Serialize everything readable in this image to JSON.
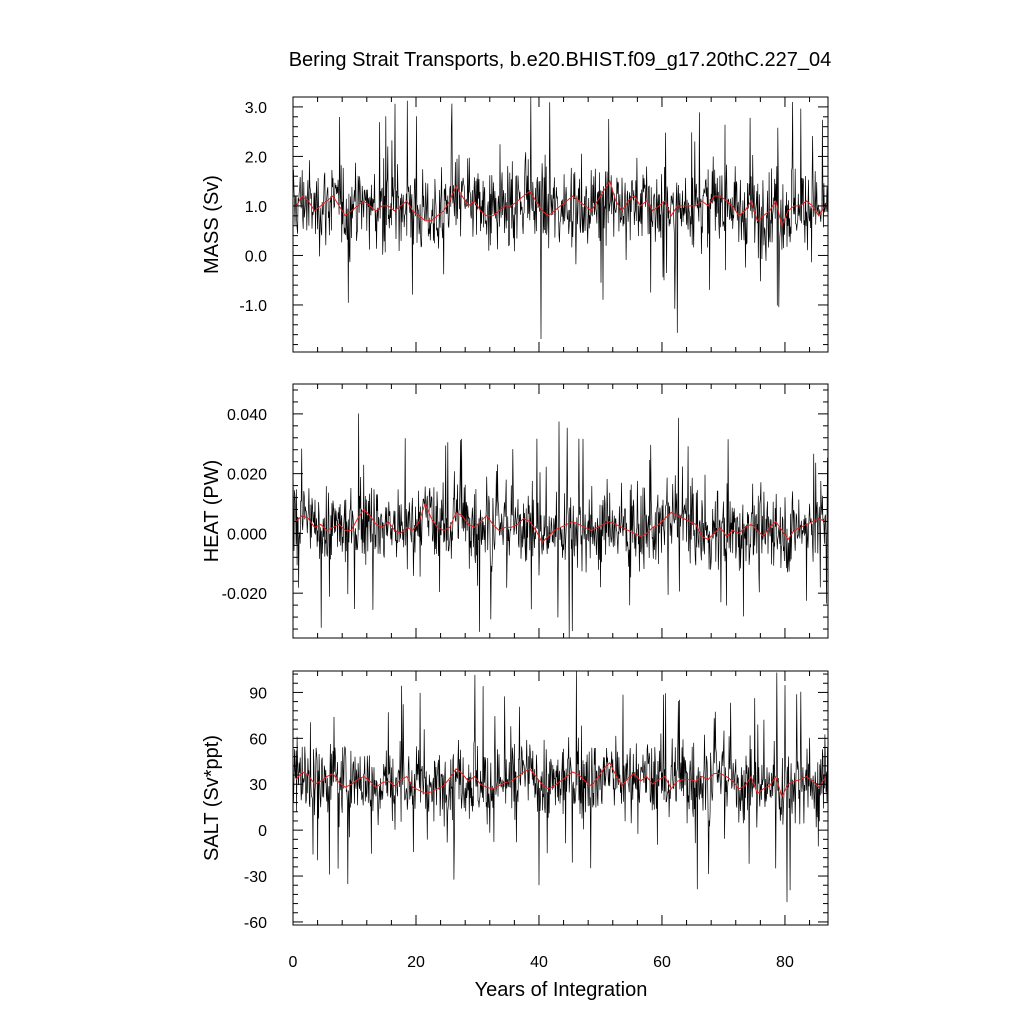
{
  "title": "Bering Strait Transports, b.e20.BHIST.f09_g17.20thC.227_04",
  "chart_data": {
    "type": "line",
    "title": "Bering Strait Transports, b.e20.BHIST.f09_g17.20thC.227_04",
    "xlabel": "Years of Integration",
    "x_ticks": [
      "0",
      "20",
      "40",
      "60",
      "80"
    ],
    "xlim": [
      0,
      87
    ],
    "grid": false,
    "series_colors": {
      "monthly": "#000000",
      "annual_mean": "#e8201e"
    },
    "panels": [
      {
        "ylabel": "MASS (Sv)",
        "ylim": [
          -1.95,
          3.2
        ],
        "y_ticks": [
          "-1.0",
          "0.0",
          "1.0",
          "2.0",
          "3.0"
        ],
        "monthly_mean_approx": 1.0,
        "monthly_range_approx": [
          -1.95,
          3.2
        ],
        "annual_mean": [
          1.0,
          1.2,
          1.1,
          0.9,
          1.0,
          1.1,
          1.2,
          1.0,
          0.8,
          0.9,
          1.0,
          1.1,
          1.0,
          0.9,
          1.0,
          1.0,
          0.9,
          1.0,
          1.1,
          0.9,
          0.8,
          0.7,
          0.7,
          0.8,
          0.9,
          1.1,
          1.4,
          1.2,
          1.0,
          1.1,
          0.9,
          0.8,
          0.8,
          0.9,
          1.0,
          1.0,
          1.1,
          1.2,
          1.3,
          1.1,
          0.9,
          0.8,
          0.9,
          1.0,
          1.1,
          1.2,
          1.1,
          1.0,
          0.9,
          1.1,
          1.3,
          1.5,
          1.1,
          0.9,
          1.1,
          1.2,
          1.0,
          1.1,
          0.9,
          1.0,
          1.1,
          0.8,
          1.0,
          1.0,
          1.0,
          1.0,
          1.1,
          1.0,
          1.2,
          1.2,
          1.1,
          1.0,
          0.8,
          0.9,
          1.1,
          0.7,
          0.8,
          0.9,
          1.1,
          0.6,
          0.9,
          1.0,
          1.0,
          1.1,
          1.0,
          0.8,
          1.0
        ]
      },
      {
        "ylabel": "HEAT (PW)",
        "ylim": [
          -0.035,
          0.05
        ],
        "y_ticks": [
          "-0.020",
          "0.000",
          "0.020",
          "0.040"
        ],
        "monthly_mean_approx": 0.002,
        "monthly_range_approx": [
          -0.035,
          0.05
        ],
        "annual_mean": [
          0.004,
          0.006,
          0.005,
          0.002,
          0.003,
          0.001,
          0.002,
          0.003,
          0.001,
          0.001,
          0.005,
          0.008,
          0.006,
          0.003,
          0.002,
          0.004,
          0.001,
          0.0,
          0.002,
          0.001,
          0.004,
          0.01,
          0.005,
          0.002,
          0.001,
          0.002,
          0.007,
          0.006,
          0.003,
          0.002,
          0.004,
          0.006,
          0.003,
          0.001,
          0.002,
          0.002,
          0.003,
          0.005,
          0.004,
          0.001,
          -0.003,
          -0.001,
          0.001,
          0.002,
          0.003,
          0.004,
          0.003,
          0.002,
          0.001,
          0.002,
          0.003,
          0.004,
          0.003,
          0.002,
          0.001,
          0.0,
          -0.001,
          0.0,
          0.002,
          0.003,
          0.005,
          0.007,
          0.006,
          0.005,
          0.004,
          0.003,
          -0.001,
          -0.002,
          0.0,
          0.002,
          -0.001,
          0.001,
          0.0,
          0.002,
          0.003,
          0.001,
          -0.001,
          0.002,
          0.004,
          0.001,
          -0.002,
          0.001,
          0.002,
          0.003,
          0.004,
          0.005,
          0.004
        ]
      },
      {
        "ylabel": "SALT (Sv*ppt)",
        "ylim": [
          -62,
          104
        ],
        "y_ticks": [
          "-60",
          "-30",
          "0",
          "30",
          "60",
          "90"
        ],
        "monthly_mean_approx": 32,
        "monthly_range_approx": [
          -62,
          104
        ],
        "annual_mean": [
          33,
          38,
          36,
          30,
          32,
          35,
          37,
          31,
          28,
          30,
          33,
          35,
          32,
          28,
          31,
          32,
          29,
          33,
          35,
          28,
          26,
          24,
          25,
          27,
          29,
          34,
          40,
          37,
          32,
          35,
          30,
          28,
          27,
          29,
          31,
          32,
          35,
          38,
          40,
          35,
          30,
          27,
          29,
          32,
          35,
          38,
          36,
          32,
          29,
          34,
          40,
          44,
          36,
          29,
          34,
          37,
          32,
          35,
          30,
          33,
          35,
          27,
          32,
          33,
          33,
          32,
          35,
          33,
          37,
          37,
          35,
          32,
          27,
          29,
          35,
          24,
          27,
          29,
          35,
          22,
          30,
          32,
          33,
          35,
          32,
          28,
          34
        ]
      }
    ]
  }
}
